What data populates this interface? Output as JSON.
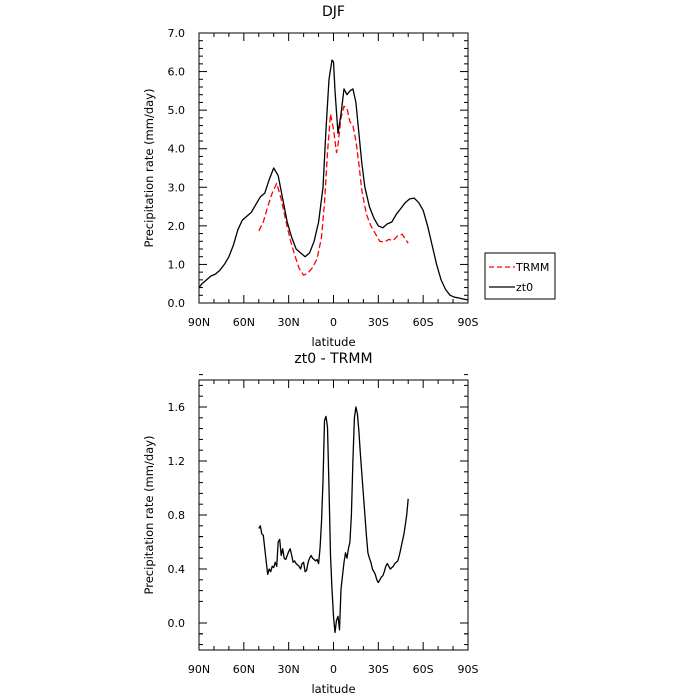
{
  "chart_data": [
    {
      "type": "line",
      "title": "DJF",
      "xlabel": "latitude",
      "ylabel": "Precipitation rate (mm/day)",
      "xlim": [
        90,
        -90
      ],
      "ylim": [
        0,
        7
      ],
      "x_ticks": [
        90,
        60,
        30,
        0,
        -30,
        -60,
        -90
      ],
      "x_tick_labels": [
        "90N",
        "60N",
        "30N",
        "0",
        "30S",
        "60S",
        "90S"
      ],
      "y_ticks": [
        0,
        1,
        2,
        3,
        4,
        5,
        6,
        7
      ],
      "y_tick_labels": [
        "0.0",
        "1.0",
        "2.0",
        "3.0",
        "4.0",
        "5.0",
        "6.0",
        "7.0"
      ],
      "grid": false,
      "legend": {
        "placement": "right",
        "entries": [
          {
            "name": "TRMM",
            "color": "#ff0000",
            "style": "dashed"
          },
          {
            "name": "zt0",
            "color": "#000000",
            "style": "solid"
          }
        ]
      },
      "series": [
        {
          "name": "TRMM",
          "color": "#ff0000",
          "style": "dashed",
          "x": [
            50,
            47,
            44,
            41,
            38,
            35,
            32,
            29,
            26,
            23,
            20,
            17,
            14,
            11,
            8,
            6,
            4,
            2,
            0,
            -2,
            -3,
            -5,
            -7,
            -9,
            -11,
            -13,
            -15,
            -17,
            -19,
            -22,
            -25,
            -28,
            -31,
            -34,
            -37,
            -40,
            -43,
            -46,
            -50
          ],
          "y": [
            1.87,
            2.1,
            2.5,
            2.85,
            3.1,
            2.7,
            2.15,
            1.65,
            1.25,
            0.9,
            0.72,
            0.78,
            0.92,
            1.15,
            1.7,
            2.6,
            3.9,
            4.9,
            4.5,
            3.9,
            4.1,
            4.8,
            5.1,
            5.05,
            4.7,
            4.6,
            4.2,
            3.6,
            2.9,
            2.3,
            2.0,
            1.8,
            1.6,
            1.58,
            1.65,
            1.62,
            1.75,
            1.78,
            1.55
          ]
        },
        {
          "name": "zt0",
          "color": "#000000",
          "style": "solid",
          "x": [
            90,
            88,
            85,
            82,
            79,
            76,
            73,
            70,
            67,
            64,
            61,
            58,
            55,
            52,
            49,
            46,
            43,
            40,
            37,
            34,
            31,
            28,
            25,
            22,
            19,
            16,
            13,
            10,
            7,
            5,
            3,
            1,
            0,
            -1,
            -3,
            -5,
            -7,
            -9,
            -11,
            -13,
            -15,
            -17,
            -19,
            -21,
            -24,
            -27,
            -30,
            -33,
            -36,
            -39,
            -42,
            -45,
            -48,
            -51,
            -54,
            -57,
            -60,
            -63,
            -66,
            -69,
            -72,
            -75,
            -78,
            -81,
            -84,
            -87,
            -90
          ],
          "y": [
            0.4,
            0.5,
            0.6,
            0.7,
            0.75,
            0.85,
            1.0,
            1.2,
            1.5,
            1.9,
            2.15,
            2.25,
            2.35,
            2.55,
            2.75,
            2.85,
            3.2,
            3.5,
            3.3,
            2.7,
            2.1,
            1.7,
            1.4,
            1.3,
            1.2,
            1.3,
            1.6,
            2.1,
            3.0,
            4.5,
            5.8,
            6.3,
            6.25,
            5.5,
            4.4,
            4.9,
            5.55,
            5.4,
            5.5,
            5.55,
            5.2,
            4.4,
            3.6,
            3.0,
            2.5,
            2.2,
            2.0,
            1.95,
            2.05,
            2.1,
            2.3,
            2.45,
            2.6,
            2.7,
            2.72,
            2.6,
            2.4,
            2.0,
            1.5,
            1.0,
            0.6,
            0.35,
            0.2,
            0.15,
            0.13,
            0.1,
            0.08
          ]
        }
      ]
    },
    {
      "type": "line",
      "title": "zt0 - TRMM",
      "xlabel": "latitude",
      "ylabel": "Precipitation rate (mm/day)",
      "xlim": [
        90,
        -90
      ],
      "ylim": [
        -0.2,
        1.8
      ],
      "x_ticks": [
        90,
        60,
        30,
        0,
        -30,
        -60,
        -90
      ],
      "x_tick_labels": [
        "90N",
        "60N",
        "30N",
        "0",
        "30S",
        "60S",
        "90S"
      ],
      "y_ticks": [
        0,
        0.4,
        0.8,
        1.2,
        1.6
      ],
      "y_tick_labels": [
        "0.0",
        "0.4",
        "0.8",
        "1.2",
        "1.6"
      ],
      "grid": false,
      "series": [
        {
          "color": "#000000",
          "style": "solid",
          "x": [
            50,
            49,
            48,
            47,
            46,
            45,
            44,
            43,
            42,
            41,
            40,
            39,
            38,
            37,
            36,
            35,
            34,
            33,
            32,
            31,
            30,
            29,
            28,
            27,
            26,
            25,
            24,
            23,
            22,
            21,
            20,
            19,
            18,
            17,
            16,
            15,
            14,
            13,
            12,
            11,
            10,
            9,
            8,
            7,
            6,
            5,
            4,
            3,
            2,
            1,
            0,
            -1,
            -2,
            -3,
            -4,
            -5,
            -6,
            -7,
            -8,
            -9,
            -10,
            -11,
            -12,
            -13,
            -14,
            -15,
            -16,
            -17,
            -18,
            -19,
            -20,
            -21,
            -22,
            -23,
            -24,
            -25,
            -26,
            -27,
            -28,
            -29,
            -30,
            -31,
            -32,
            -33,
            -34,
            -35,
            -36,
            -37,
            -38,
            -39,
            -40,
            -41,
            -42,
            -43,
            -44,
            -45,
            -46,
            -47,
            -48,
            -49,
            -50
          ],
          "y": [
            0.7,
            0.72,
            0.66,
            0.65,
            0.55,
            0.45,
            0.36,
            0.4,
            0.38,
            0.42,
            0.41,
            0.45,
            0.42,
            0.6,
            0.62,
            0.5,
            0.55,
            0.48,
            0.47,
            0.5,
            0.53,
            0.55,
            0.5,
            0.45,
            0.46,
            0.44,
            0.43,
            0.42,
            0.4,
            0.44,
            0.45,
            0.38,
            0.39,
            0.45,
            0.48,
            0.5,
            0.48,
            0.47,
            0.46,
            0.47,
            0.44,
            0.56,
            0.75,
            1.05,
            1.5,
            1.53,
            1.45,
            1.0,
            0.5,
            0.25,
            0.05,
            -0.07,
            0.02,
            0.05,
            -0.05,
            0.25,
            0.35,
            0.45,
            0.52,
            0.48,
            0.55,
            0.6,
            0.8,
            1.2,
            1.52,
            1.6,
            1.55,
            1.42,
            1.25,
            1.1,
            0.95,
            0.8,
            0.65,
            0.52,
            0.48,
            0.45,
            0.4,
            0.38,
            0.36,
            0.32,
            0.3,
            0.32,
            0.34,
            0.35,
            0.38,
            0.42,
            0.44,
            0.42,
            0.4,
            0.41,
            0.42,
            0.44,
            0.45,
            0.46,
            0.5,
            0.55,
            0.6,
            0.65,
            0.72,
            0.8,
            0.92
          ]
        }
      ]
    }
  ]
}
